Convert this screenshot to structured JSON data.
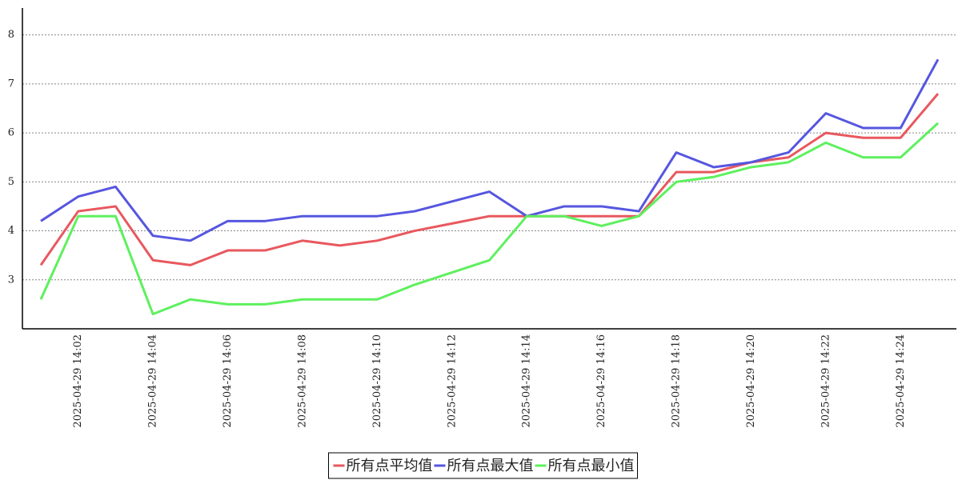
{
  "chart_data": {
    "type": "line",
    "categories": [
      null,
      "2025-04-29 14:02",
      null,
      "2025-04-29 14:04",
      null,
      "2025-04-29 14:06",
      null,
      "2025-04-29 14:08",
      null,
      "2025-04-29 14:10",
      null,
      "2025-04-29 14:12",
      null,
      "2025-04-29 14:14",
      null,
      "2025-04-29 14:16",
      null,
      "2025-04-29 14:18",
      null,
      "2025-04-29 14:20",
      null,
      "2025-04-29 14:22",
      null,
      "2025-04-29 14:24",
      null
    ],
    "series": [
      {
        "name": "所有点平均值",
        "color": "#e8585e",
        "values": [
          3.3,
          4.4,
          4.5,
          3.4,
          3.3,
          3.6,
          3.6,
          3.8,
          3.7,
          3.8,
          4.0,
          4.15,
          4.3,
          4.3,
          4.3,
          4.3,
          4.3,
          5.2,
          5.2,
          5.4,
          5.5,
          6.0,
          5.9,
          5.9,
          6.8
        ]
      },
      {
        "name": "所有点最大值",
        "color": "#5656e0",
        "values": [
          4.2,
          4.7,
          4.9,
          3.9,
          3.8,
          4.2,
          4.2,
          4.3,
          4.3,
          4.3,
          4.4,
          4.6,
          4.8,
          4.3,
          4.5,
          4.5,
          4.4,
          5.6,
          5.3,
          5.4,
          5.6,
          6.4,
          6.1,
          6.1,
          7.5
        ]
      },
      {
        "name": "所有点最小值",
        "color": "#5ef05e",
        "values": [
          2.6,
          4.3,
          4.3,
          2.3,
          2.6,
          2.5,
          2.5,
          2.6,
          2.6,
          2.6,
          2.9,
          3.15,
          3.4,
          4.3,
          4.3,
          4.1,
          4.3,
          5.0,
          5.1,
          5.3,
          5.4,
          5.8,
          5.5,
          5.5,
          6.2
        ]
      }
    ],
    "ylim": [
      2,
      8.55
    ],
    "yticks": [
      3,
      4,
      5,
      6,
      7,
      8
    ],
    "grid": true,
    "legend": "bottom"
  }
}
